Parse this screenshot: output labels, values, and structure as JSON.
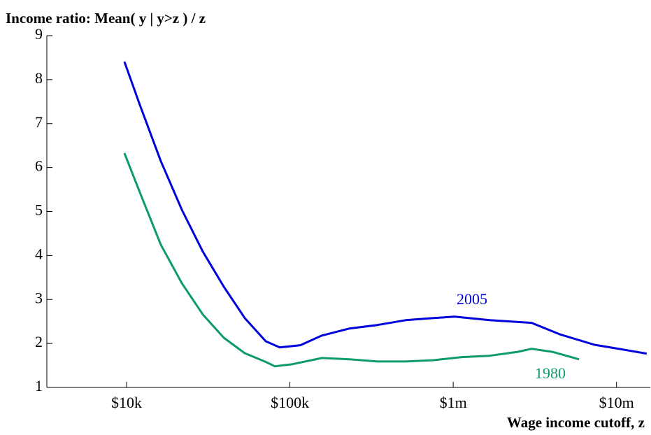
{
  "chart_data": {
    "type": "line",
    "title": "Income ratio: Mean( y | y>z ) / z",
    "x_label": "Wage income cutoff, z",
    "log_x": true,
    "xlim": [
      3250,
      16100000
    ],
    "xticks": [
      {
        "value": 10000,
        "label": "$10k"
      },
      {
        "value": 100000,
        "label": "$100k"
      },
      {
        "value": 1000000,
        "label": "$1m"
      },
      {
        "value": 10000000,
        "label": "$10m"
      }
    ],
    "ylim": [
      1,
      9
    ],
    "yticks": [
      1,
      2,
      3,
      4,
      5,
      6,
      7,
      8,
      9
    ],
    "grid": false,
    "series": [
      {
        "name": "2005",
        "color": "#0000dd",
        "x": [
          9700,
          12050,
          16200,
          21800,
          29300,
          39400,
          52900,
          71200,
          86700,
          116000,
          157000,
          232000,
          344000,
          512000,
          759000,
          1020000,
          1670000,
          3020000,
          4480000,
          7330000,
          9860000,
          15300000
        ],
        "values": [
          8.41,
          7.43,
          6.15,
          5.04,
          4.09,
          3.29,
          2.58,
          2.05,
          1.91,
          1.96,
          2.18,
          2.34,
          2.42,
          2.53,
          2.58,
          2.61,
          2.53,
          2.47,
          2.21,
          1.97,
          1.89,
          1.77
        ]
      },
      {
        "name": "1980",
        "color": "#0e9a6e",
        "x": [
          9700,
          12050,
          16200,
          21800,
          29300,
          39400,
          52900,
          71200,
          81000,
          104000,
          157000,
          232000,
          344000,
          512000,
          759000,
          1130000,
          1670000,
          2480000,
          3020000,
          4050000,
          5900000
        ],
        "values": [
          6.33,
          5.44,
          4.25,
          3.37,
          2.66,
          2.13,
          1.78,
          1.58,
          1.48,
          1.53,
          1.67,
          1.64,
          1.59,
          1.59,
          1.62,
          1.69,
          1.72,
          1.81,
          1.88,
          1.81,
          1.64
        ]
      }
    ]
  }
}
